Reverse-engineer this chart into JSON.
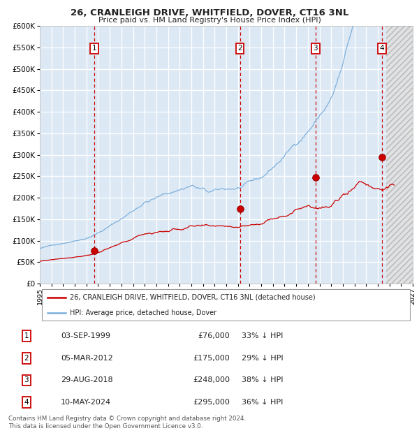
{
  "title": "26, CRANLEIGH DRIVE, WHITFIELD, DOVER, CT16 3NL",
  "subtitle": "Price paid vs. HM Land Registry's House Price Index (HPI)",
  "ylim": [
    0,
    600000
  ],
  "yticks": [
    0,
    50000,
    100000,
    150000,
    200000,
    250000,
    300000,
    350000,
    400000,
    450000,
    500000,
    550000,
    600000
  ],
  "xlim_start": 1995.0,
  "xlim_end": 2027.0,
  "bg_color": "#dce9f5",
  "grid_color": "#ffffff",
  "sale_dates": [
    1999.67,
    2012.17,
    2018.66,
    2024.36
  ],
  "sale_prices": [
    76000,
    175000,
    248000,
    295000
  ],
  "sale_labels": [
    "1",
    "2",
    "3",
    "4"
  ],
  "sale_color": "#cc0000",
  "hpi_color": "#7aaddb",
  "legend_entries": [
    "26, CRANLEIGH DRIVE, WHITFIELD, DOVER, CT16 3NL (detached house)",
    "HPI: Average price, detached house, Dover"
  ],
  "table_rows": [
    {
      "label": "1",
      "date": "03-SEP-1999",
      "price": "£76,000",
      "hpi": "33% ↓ HPI"
    },
    {
      "label": "2",
      "date": "05-MAR-2012",
      "price": "£175,000",
      "hpi": "29% ↓ HPI"
    },
    {
      "label": "3",
      "date": "29-AUG-2018",
      "price": "£248,000",
      "hpi": "38% ↓ HPI"
    },
    {
      "label": "4",
      "date": "10-MAY-2024",
      "price": "£295,000",
      "hpi": "36% ↓ HPI"
    }
  ],
  "footer": "Contains HM Land Registry data © Crown copyright and database right 2024.\nThis data is licensed under the Open Government Licence v3.0."
}
